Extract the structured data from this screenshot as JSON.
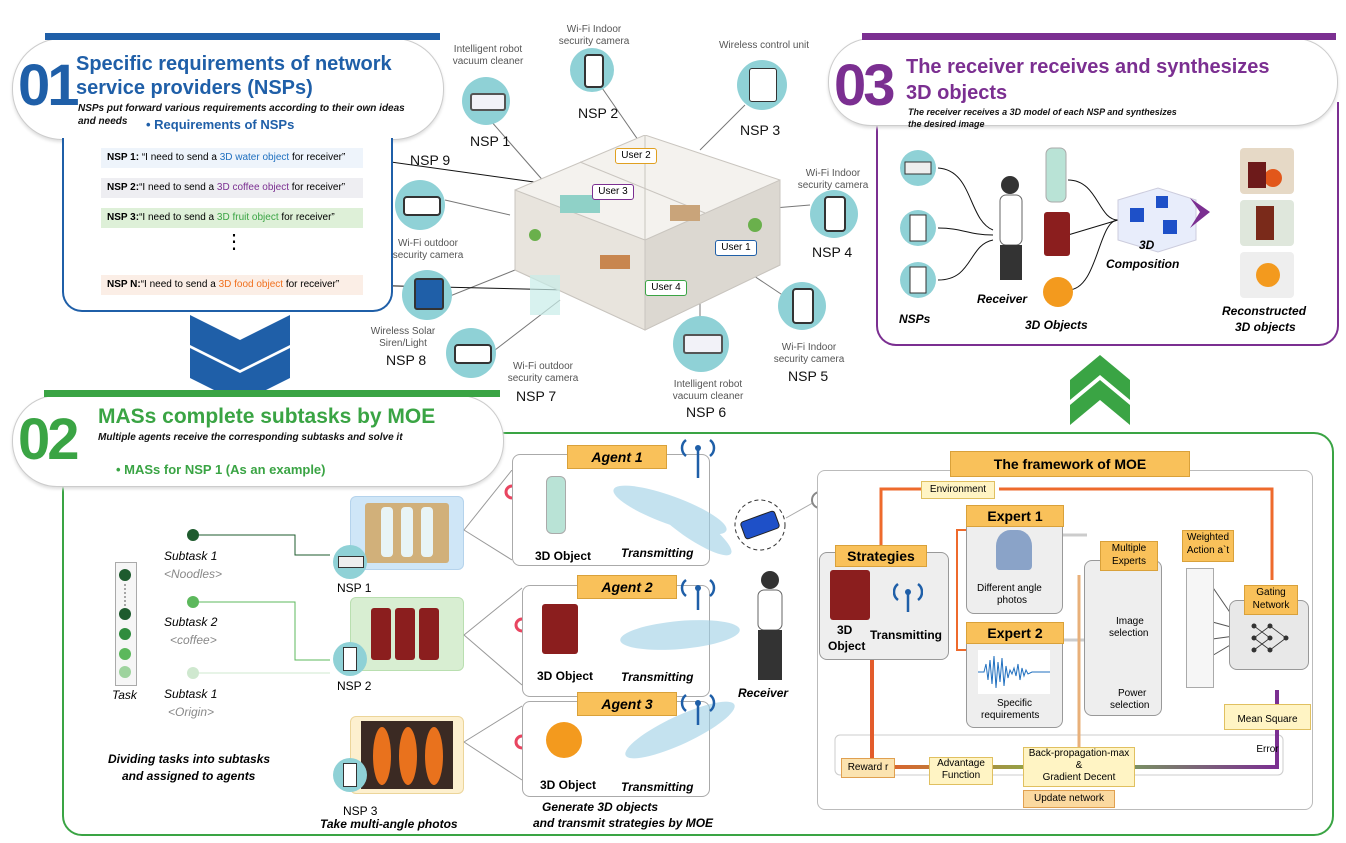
{
  "s1": {
    "num": "01",
    "title_l1": "Specific requirements of  network",
    "title_l2": "service providers (NSPs)",
    "sub_l1": "NSPs put forward various requirements according to their own ideas",
    "sub_l2": "and needs",
    "req_heading": "• Requirements of  NSPs",
    "reqs": [
      {
        "id": "NSP 1:",
        "pre": " “I need to send a ",
        "obj": "3D water object",
        "post": " for receiver”"
      },
      {
        "id": "NSP 2:",
        "pre": "“I need to send a ",
        "obj": "3D coffee object",
        "post": " for receiver”"
      },
      {
        "id": "NSP 3:",
        "pre": "“I need to send a ",
        "obj": "3D fruit object",
        "post": " for receiver”"
      },
      {
        "id": "NSP N:",
        "pre": "“I need to send a ",
        "obj": "3D food object",
        "post": " for receiver”"
      }
    ],
    "dots": "⋮"
  },
  "devices": {
    "nsp1": {
      "name": "NSP 1",
      "desc": "Intelligent robot vacuum cleaner"
    },
    "nsp2": {
      "name": "NSP 2",
      "desc": "Wi-Fi Indoor security camera"
    },
    "nsp3": {
      "name": "NSP 3",
      "desc": "Wireless control unit"
    },
    "nsp4": {
      "name": "NSP 4",
      "desc": "Wi-Fi Indoor security camera"
    },
    "nsp5": {
      "name": "NSP 5",
      "desc": "Wi-Fi Indoor security camera"
    },
    "nsp6": {
      "name": "NSP 6",
      "desc": "Intelligent robot vacuum cleaner"
    },
    "nsp7": {
      "name": "NSP 7",
      "desc": "Wi-Fi outdoor security camera"
    },
    "nsp8": {
      "name": "NSP 8",
      "desc": "Wireless Solar Siren/Light"
    },
    "nsp9": {
      "name": "NSP 9",
      "desc": "Wi-Fi outdoor security camera"
    },
    "users": [
      "User 1",
      "User 2",
      "User 3",
      "User 4"
    ]
  },
  "s3": {
    "num": "03",
    "title_l1": "The receiver receives and synthesizes",
    "title_l2": "3D objects",
    "sub_l1": "The receiver receives a 3D model of each NSP and synthesizes",
    "sub_l2": "the desired image",
    "nsps": "NSPs",
    "receiver": "Receiver",
    "objects": "3D Objects",
    "composition_l1": "3D",
    "composition_l2": "Composition",
    "recon_l1": "Reconstructed",
    "recon_l2": "3D objects"
  },
  "s2": {
    "num": "02",
    "title": "MASs complete subtasks by MOE",
    "sub": "Multiple agents receive the corresponding subtasks and solve it",
    "mas": "• MASs for  NSP 1 (As an example)",
    "task": "Task",
    "subtasks": [
      {
        "name": "Subtask 1",
        "tag": "<Noodles>"
      },
      {
        "name": "Subtask 2",
        "tag": "<coffee>"
      },
      {
        "name": "Subtask 1",
        "tag": "<Origin>"
      }
    ],
    "divide_l1": "Dividing tasks into subtasks",
    "divide_l2": "and assigned to agents",
    "nsp_labels": [
      "NSP 1",
      "NSP 2",
      "NSP 3"
    ],
    "take_photos": "Take multi-angle photos",
    "agents": [
      "Agent 1",
      "Agent 2",
      "Agent 3"
    ],
    "obj3d": "3D Object",
    "transmitting": "Transmitting",
    "receiver": "Receiver",
    "gen_l1": "Generate 3D objects",
    "gen_l2": "and transmit strategies by MOE"
  },
  "moe": {
    "title": "The framework of  MOE",
    "environment": "Environment",
    "strategies": "Strategies",
    "obj_l1": "3D",
    "obj_l2": "Object",
    "transmitting": "Transmitting",
    "expert1": "Expert 1",
    "expert1_desc_l1": "Different angle",
    "expert1_desc_l2": "photos",
    "expert2": "Expert 2",
    "expert2_desc_l1": "Specific",
    "expert2_desc_l2": "requirements",
    "multiple_l1": "Multiple",
    "multiple_l2": "Experts",
    "image_sel_l1": "Image",
    "image_sel_l2": "selection",
    "power_sel_l1": "Power",
    "power_sel_l2": "selection",
    "weighted_l1": "Weighted",
    "weighted_l2": "Action a`t",
    "gating_l1": "Gating",
    "gating_l2": "Network",
    "mse": "Mean Square Error",
    "reward": "Reward r",
    "advantage_l1": "Advantage",
    "advantage_l2": "Function",
    "backprop_l1": "Back-propagation-max",
    "backprop_l2": "&",
    "backprop_l3": "Gradient Decent",
    "update": "Update network"
  },
  "colors": {
    "blue": "#1f5fa8",
    "green": "#3aa444",
    "purple": "#7b2f91",
    "orange": "#f9c15a"
  }
}
